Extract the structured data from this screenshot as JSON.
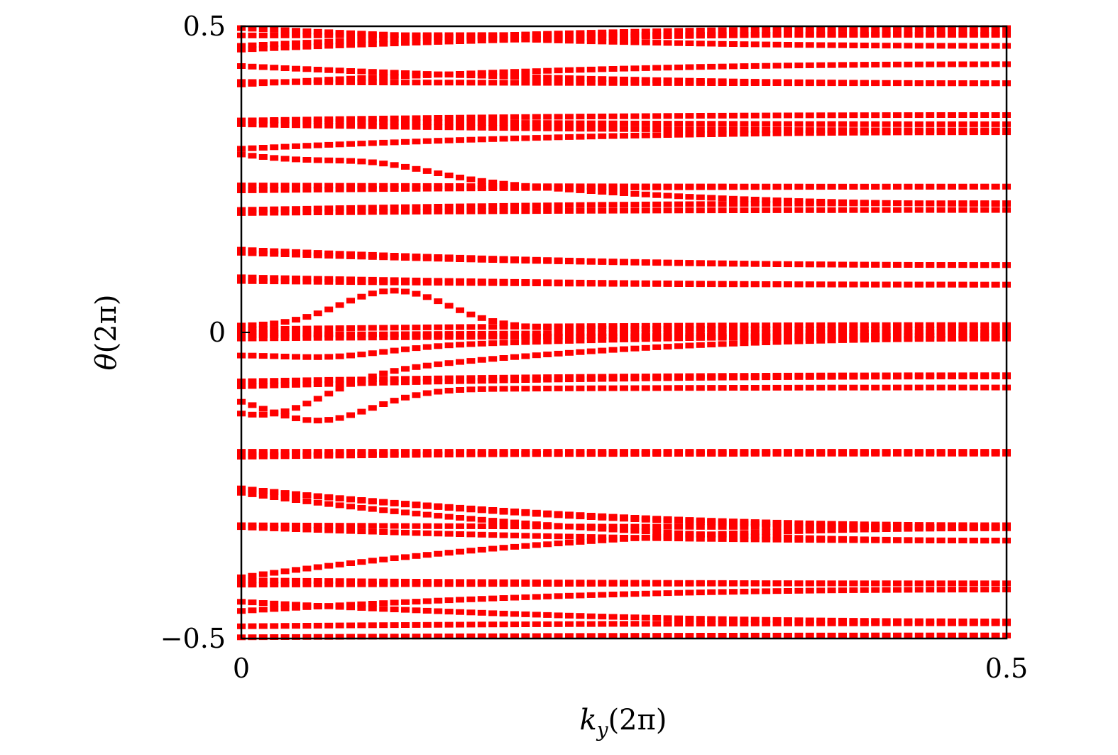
{
  "chart_data": {
    "type": "scatter",
    "xlabel_main": "k",
    "xlabel_sub": "y",
    "xlabel_rest": "(2π)",
    "ylabel_main": "θ",
    "ylabel_rest": "(2π)",
    "xlim": [
      0,
      0.5
    ],
    "ylim": [
      -0.5,
      0.5
    ],
    "xticks": [
      0,
      0.5
    ],
    "xtick_labels": [
      "0",
      "0.5"
    ],
    "yticks": [
      -0.5,
      0,
      0.5
    ],
    "ytick_labels": [
      "−0.5",
      "0",
      "0.5"
    ],
    "grid": false,
    "marker_color": "#ff0000",
    "n_samples": 70,
    "series": [
      {
        "y0": 0.497,
        "y_end": 0.468
      },
      {
        "y0": 0.468,
        "y_end": 0.497
      },
      {
        "y0": 0.485,
        "y_end": 0.486
      },
      {
        "y0": 0.462,
        "y_end": 0.488
      },
      {
        "y0": 0.435,
        "y_end": 0.407
      },
      {
        "y0": 0.405,
        "y_end": 0.438
      },
      {
        "y0": 0.409,
        "y_end": 0.407
      },
      {
        "y0": 0.346,
        "y_end": 0.355
      },
      {
        "y0": 0.346,
        "y_end": 0.34
      },
      {
        "y0": 0.34,
        "y_end": 0.33
      },
      {
        "y0": 0.3,
        "y_end": 0.327
      },
      {
        "y0": 0.29,
        "y_end": 0.21,
        "bump": 0.015,
        "bump_at": 0.09
      },
      {
        "y0": 0.24,
        "y_end": 0.238
      },
      {
        "y0": 0.232,
        "y_end": 0.238
      },
      {
        "y0": 0.2,
        "y_end": 0.211
      },
      {
        "y0": 0.195,
        "y_end": 0.2
      },
      {
        "y0": 0.135,
        "y_end": 0.11
      },
      {
        "y0": 0.13,
        "y_end": 0.11
      },
      {
        "y0": 0.09,
        "y_end": 0.078
      },
      {
        "y0": 0.084,
        "y_end": 0.078
      },
      {
        "y0": 0.01,
        "y_end": 0.005,
        "bump": 0.06,
        "bump_at": 0.1
      },
      {
        "y0": 0.005,
        "y_end": 0.012
      },
      {
        "y0": 0.0,
        "y_end": -0.01
      },
      {
        "y0": -0.005,
        "y_end": 0.0
      },
      {
        "y0": -0.01,
        "y_end": -0.005
      },
      {
        "y0": -0.035,
        "y_end": -0.005,
        "bump": -0.012,
        "bump_at": 0.06
      },
      {
        "y0": -0.08,
        "y_end": -0.07
      },
      {
        "y0": -0.09,
        "y_end": -0.01,
        "bump": -0.05,
        "bump_at": 0.02
      },
      {
        "y0": -0.088,
        "y_end": -0.072
      },
      {
        "y0": -0.095,
        "y_end": -0.09,
        "bump": -0.05,
        "bump_at": 0.05
      },
      {
        "y0": -0.195,
        "y_end": -0.195
      },
      {
        "y0": -0.2,
        "y_end": -0.198
      },
      {
        "y0": -0.203,
        "y_end": -0.196
      },
      {
        "y0": -0.255,
        "y_end": -0.315
      },
      {
        "y0": -0.255,
        "y_end": -0.318
      },
      {
        "y0": -0.262,
        "y_end": -0.34
      },
      {
        "y0": -0.315,
        "y_end": -0.318
      },
      {
        "y0": -0.318,
        "y_end": -0.34
      },
      {
        "y0": -0.4,
        "y_end": -0.32
      },
      {
        "y0": -0.405,
        "y_end": -0.41
      },
      {
        "y0": -0.412,
        "y_end": -0.41
      },
      {
        "y0": -0.44,
        "y_end": -0.472
      },
      {
        "y0": -0.455,
        "y_end": -0.42
      },
      {
        "y0": -0.48,
        "y_end": -0.475
      },
      {
        "y0": -0.498,
        "y_end": -0.495
      }
    ]
  }
}
